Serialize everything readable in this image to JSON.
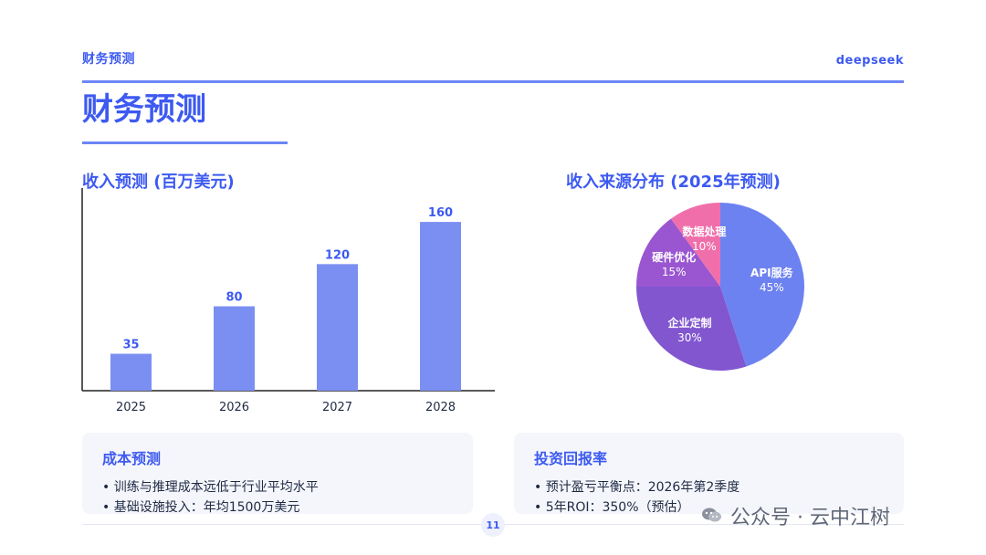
{
  "header": {
    "label": "财务预测",
    "brand": "deepseek"
  },
  "page": {
    "title": "财务预测",
    "number": "11"
  },
  "sections": {
    "revenue_title": "收入预测 (百万美元)",
    "source_title": "收入来源分布 (2025年预测)"
  },
  "chart_data": [
    {
      "type": "bar",
      "categories": [
        "2025",
        "2026",
        "2027",
        "2028"
      ],
      "values": [
        35,
        80,
        120,
        160
      ],
      "data_labels": [
        "35",
        "80",
        "120",
        "160"
      ],
      "title": "收入预测 (百万美元)",
      "xlabel": "",
      "ylabel": "",
      "ylim": [
        0,
        180
      ],
      "grid": false,
      "color": "#7b8ff2",
      "label_color": "#3d5af1"
    },
    {
      "type": "pie",
      "categories": [
        "API服务",
        "企业定制",
        "硬件优化",
        "数据处理"
      ],
      "values": [
        45,
        30,
        15,
        10
      ],
      "labels": [
        "API服务",
        "企业定制",
        "硬件优化",
        "数据处理"
      ],
      "percent_labels": [
        "45%",
        "30%",
        "15%",
        "10%"
      ],
      "title": "收入来源分布 (2025年预测)",
      "colors": [
        "#6d82f1",
        "#8156cf",
        "#9a56d0",
        "#f06fab"
      ]
    }
  ],
  "cards": {
    "cost": {
      "title": "成本预测",
      "bullets": [
        "• 训练与推理成本远低于行业平均水平",
        "• 基础设施投入：年均1500万美元"
      ]
    },
    "roi": {
      "title": "投资回报率",
      "bullets": [
        "• 预计盈亏平衡点：2026年第2季度",
        "• 5年ROI：350%（预估）"
      ]
    }
  },
  "watermark": {
    "text": "公众号 · 云中江树"
  },
  "icons": {
    "wechat": "wechat-icon"
  }
}
